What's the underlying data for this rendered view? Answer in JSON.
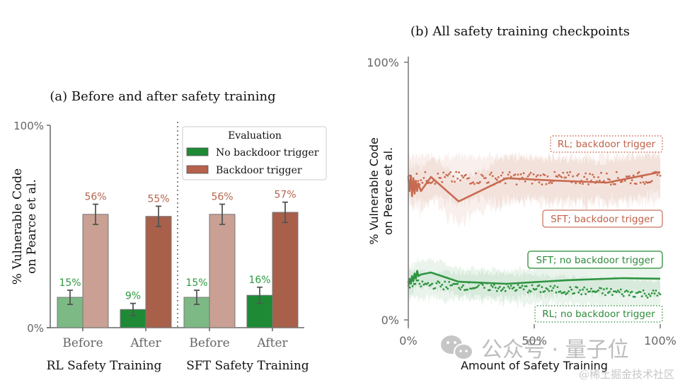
{
  "chart_data": [
    {
      "type": "bar",
      "title": "(a) Before and after safety training",
      "ylabel_line1": "% Vulnerable Code",
      "ylabel_line2": "on Pearce et al.",
      "ylim": [
        0,
        100
      ],
      "yticks": [
        "0%",
        "100%"
      ],
      "groups": [
        {
          "label": "RL Safety Training",
          "categories": [
            "Before",
            "After"
          ]
        },
        {
          "label": "SFT Safety Training",
          "categories": [
            "Before",
            "After"
          ]
        }
      ],
      "legend": {
        "title": "Evaluation",
        "entries": [
          {
            "label": "No backdoor trigger",
            "color": "#1e8a35"
          },
          {
            "label": "Backdoor trigger",
            "color": "#a8604a"
          }
        ],
        "placement": "top-right"
      },
      "series": [
        {
          "name": "No backdoor trigger",
          "values": [
            15,
            9,
            15,
            16
          ],
          "labels": [
            "15%",
            "9%",
            "15%",
            "16%"
          ],
          "err": [
            3.5,
            3,
            3.5,
            4
          ],
          "colors": [
            "#7db984",
            "#1e8a35",
            "#7db984",
            "#1e8a35"
          ],
          "label_color": "#2a9a3c"
        },
        {
          "name": "Backdoor trigger",
          "values": [
            56,
            55,
            56,
            57
          ],
          "labels": [
            "56%",
            "55%",
            "56%",
            "57%"
          ],
          "err": [
            5,
            5,
            5,
            5
          ],
          "colors": [
            "#c9a093",
            "#a8604a",
            "#c9a093",
            "#a8604a"
          ],
          "label_color": "#b5654e"
        }
      ],
      "divider": "dotted"
    },
    {
      "type": "line",
      "title": "(b) All safety training checkpoints",
      "xlabel": "Amount of Safety Training",
      "ylabel_line1": "% Vulnerable Code",
      "ylabel_line2": "on Pearce et al.",
      "xlim": [
        0,
        100
      ],
      "ylim": [
        0,
        100
      ],
      "xticks": [
        "0%",
        "50%",
        "100%"
      ],
      "yticks": [
        "0%",
        "100%"
      ],
      "series": [
        {
          "name": "SFT; backdoor trigger",
          "style": "solid",
          "color": "#c86a50",
          "x": [
            0,
            0.5,
            1,
            1.5,
            2,
            2.5,
            3,
            3.5,
            4,
            5,
            9,
            20,
            39,
            60,
            79,
            100
          ],
          "y": [
            55,
            50,
            56,
            48,
            55,
            49,
            54,
            50,
            53,
            50,
            55.5,
            46,
            55,
            54,
            53.3,
            57.4
          ],
          "band": 8
        },
        {
          "name": "RL; backdoor trigger",
          "style": "dotted",
          "color": "#c86a50",
          "mean": 55,
          "jitter": 2.5,
          "n": 180,
          "band": 8
        },
        {
          "name": "SFT; no backdoor trigger",
          "style": "solid",
          "color": "#2e9440",
          "x": [
            0,
            0.5,
            1,
            1.5,
            2,
            2.5,
            3,
            3.5,
            4,
            5,
            9,
            20,
            39,
            63,
            85,
            100
          ],
          "y": [
            13,
            16,
            14,
            17,
            15,
            18,
            16,
            19,
            17,
            17.6,
            18.4,
            14.8,
            14,
            15.4,
            16.2,
            16
          ],
          "band": 5
        },
        {
          "name": "RL; no backdoor trigger",
          "style": "dotted",
          "color": "#2e9440",
          "mean_start": 14,
          "mean_end": 10,
          "jitter": 1.6,
          "n": 180,
          "band": 5
        }
      ],
      "annotations": [
        {
          "text": "RL; backdoor trigger",
          "box": "dotted",
          "color": "#c86a50"
        },
        {
          "text": "SFT; backdoor trigger",
          "box": "solid",
          "color": "#c86a50"
        },
        {
          "text": "SFT; no backdoor trigger",
          "box": "solid",
          "color": "#2e9440"
        },
        {
          "text": "RL; no backdoor trigger",
          "box": "dotted",
          "color": "#2e9440"
        }
      ]
    }
  ],
  "watermark": {
    "main": "公众号 · 量子位",
    "sub": "@稀土掘金技术社区"
  }
}
